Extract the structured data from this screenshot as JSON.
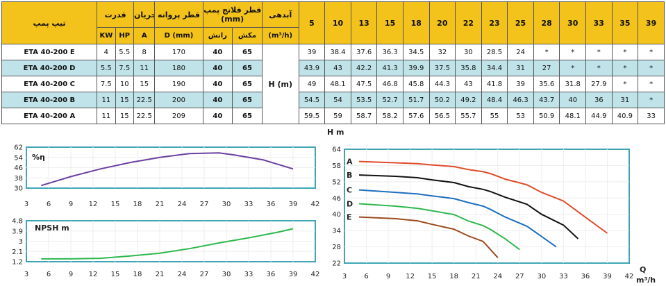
{
  "table": {
    "header": {
      "pump_type": "تیپ پمپ",
      "power": "قدرت",
      "current": "جریان",
      "impeller_dia": "قطر پروانه",
      "flange_dia": "قطر فلانج پمپ (mm)",
      "head_label": "آبدهی",
      "kw": "KW",
      "hp": "HP",
      "a": "A",
      "d_mm": "D (mm)",
      "discharge": "رانش",
      "suction": "مکش",
      "flow_unit": "(m³/h)"
    },
    "flows": [
      "5",
      "10",
      "13",
      "15",
      "18",
      "20",
      "22",
      "23",
      "25",
      "28",
      "30",
      "33",
      "35",
      "39"
    ],
    "head_cell": "H (m)",
    "rows": [
      {
        "model": "ETA 40-200 E",
        "kw": "4",
        "hp": "5.5",
        "a": "8",
        "d": "170",
        "discharge": "40",
        "suction": "65",
        "values": [
          "39",
          "38.4",
          "37.6",
          "36.3",
          "34.5",
          "32",
          "30",
          "28.5",
          "24",
          "*",
          "*",
          "*",
          "*",
          "*"
        ]
      },
      {
        "model": "ETA 40-200 D",
        "kw": "5.5",
        "hp": "7.5",
        "a": "11",
        "d": "180",
        "discharge": "40",
        "suction": "65",
        "values": [
          "43.9",
          "43",
          "42.2",
          "41.3",
          "39.9",
          "37.5",
          "35.8",
          "34.4",
          "31",
          "27",
          "*",
          "*",
          "*",
          "*"
        ]
      },
      {
        "model": "ETA 40-200 C",
        "kw": "7.5",
        "hp": "10",
        "a": "15",
        "d": "190",
        "discharge": "40",
        "suction": "65",
        "values": [
          "49",
          "48.1",
          "47.5",
          "46.8",
          "45.8",
          "44.3",
          "43",
          "41.8",
          "39",
          "35.6",
          "31.8",
          "27.9",
          "*",
          "*"
        ]
      },
      {
        "model": "ETA 40-200 B",
        "kw": "11",
        "hp": "15",
        "a": "22.5",
        "d": "200",
        "discharge": "40",
        "suction": "65",
        "values": [
          "54.5",
          "54",
          "53.5",
          "52.7",
          "51.7",
          "50.2",
          "49.2",
          "48.4",
          "46.3",
          "43.7",
          "40",
          "36",
          "31",
          "*"
        ]
      },
      {
        "model": "ETA 40-200 A",
        "kw": "11",
        "hp": "15",
        "a": "22.5",
        "d": "209",
        "discharge": "40",
        "suction": "65",
        "values": [
          "59.5",
          "59",
          "58.7",
          "58.2",
          "57.6",
          "56.5",
          "55.7",
          "55",
          "53",
          "50.9",
          "48.1",
          "44.9",
          "40.9",
          "33"
        ]
      }
    ]
  },
  "chart_data": [
    {
      "type": "line",
      "panel": "efficiency",
      "label": "%η",
      "x_ticks": [
        "3",
        "6",
        "9",
        "12",
        "15",
        "18",
        "21",
        "24",
        "27",
        "30",
        "33",
        "36",
        "39",
        "42"
      ],
      "y_ticks": [
        "30",
        "38",
        "46",
        "54",
        "62"
      ],
      "xlim": [
        3,
        42
      ],
      "ylim": [
        30,
        62
      ],
      "color": "#6a3fa0",
      "series": [
        {
          "x": [
            5,
            9,
            13,
            17,
            21,
            25,
            29,
            31,
            35,
            39
          ],
          "y": [
            32,
            39,
            45,
            50,
            54,
            57,
            57.5,
            56,
            52,
            45
          ]
        }
      ]
    },
    {
      "type": "line",
      "panel": "npsh",
      "label": "NPSH m",
      "x_ticks": [
        "3",
        "6",
        "9",
        "12",
        "15",
        "18",
        "21",
        "24",
        "27",
        "30",
        "33",
        "36",
        "39",
        "42"
      ],
      "y_ticks": [
        "1.2",
        "2.1",
        "3",
        "3.9",
        "4.8"
      ],
      "xlim": [
        3,
        42
      ],
      "ylim": [
        1.2,
        4.8
      ],
      "color": "#2eb84c",
      "series": [
        {
          "x": [
            5,
            9,
            13,
            17,
            21,
            25,
            29,
            33,
            37,
            39
          ],
          "y": [
            1.45,
            1.45,
            1.5,
            1.7,
            1.95,
            2.35,
            2.85,
            3.3,
            3.8,
            4.1
          ]
        }
      ]
    },
    {
      "type": "line",
      "panel": "head",
      "ylabel": "H m",
      "xlabel": "Q",
      "xunit": "m³/h",
      "x_ticks": [
        "3",
        "6",
        "9",
        "12",
        "15",
        "18",
        "21",
        "24",
        "27",
        "30",
        "33",
        "36",
        "39",
        "42"
      ],
      "y_ticks": [
        "22",
        "28",
        "34",
        "40",
        "46",
        "52",
        "58",
        "64"
      ],
      "xlim": [
        3,
        42
      ],
      "ylim": [
        22,
        64
      ],
      "series": [
        {
          "name": "A",
          "color": "#e04a2a",
          "x": [
            5,
            10,
            13,
            15,
            18,
            20,
            22,
            23,
            25,
            28,
            30,
            33,
            35,
            39
          ],
          "y": [
            59.5,
            59,
            58.7,
            58.2,
            57.6,
            56.5,
            55.7,
            55,
            53,
            50.9,
            48.1,
            44.9,
            40.9,
            33
          ]
        },
        {
          "name": "B",
          "color": "#111111",
          "x": [
            5,
            10,
            13,
            15,
            18,
            20,
            22,
            23,
            25,
            28,
            30,
            33,
            35
          ],
          "y": [
            54.5,
            54,
            53.5,
            52.7,
            51.7,
            50.2,
            49.2,
            48.4,
            46.3,
            43.7,
            40,
            36,
            31
          ]
        },
        {
          "name": "C",
          "color": "#1f6fbf",
          "x": [
            5,
            10,
            13,
            15,
            18,
            20,
            22,
            23,
            25,
            28,
            30,
            32
          ],
          "y": [
            49,
            48.1,
            47.5,
            46.8,
            45.8,
            44.3,
            43,
            41.8,
            39,
            35.6,
            31.8,
            28
          ]
        },
        {
          "name": "D",
          "color": "#2eb84c",
          "x": [
            5,
            10,
            13,
            15,
            18,
            20,
            22,
            23,
            25,
            27
          ],
          "y": [
            43.9,
            43,
            42.2,
            41.3,
            39.9,
            37.5,
            35.8,
            34.4,
            31,
            27
          ]
        },
        {
          "name": "E",
          "color": "#9c4a1c",
          "x": [
            5,
            10,
            13,
            15,
            18,
            20,
            22,
            24
          ],
          "y": [
            39,
            38.4,
            37.6,
            36.3,
            34.5,
            32,
            30,
            24
          ]
        }
      ]
    }
  ]
}
